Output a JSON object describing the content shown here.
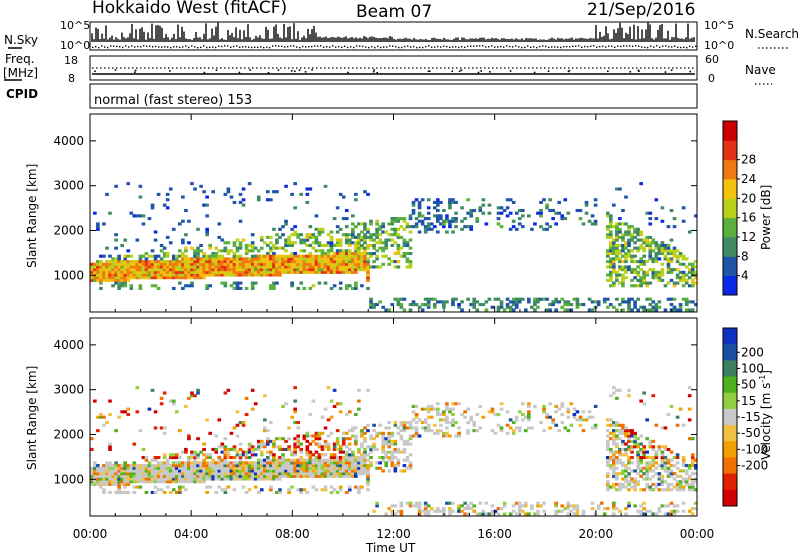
{
  "header": {
    "radar": "Hokkaido West (fitACF)",
    "beam": "Beam 07",
    "date": "21/Sep/2016"
  },
  "params": {
    "nsky_label": "N.Sky",
    "nsky_ticks": [
      "10^5",
      "10^0"
    ],
    "nsearch_label": "N.Search",
    "nsearch_ticks": [
      "10^5",
      "10^0"
    ],
    "freq_label_1": "Freq.",
    "freq_label_2": "[MHz]",
    "freq_ticks": [
      "18",
      "8"
    ],
    "nave_label": "Nave",
    "nave_ticks": [
      "60",
      "0"
    ],
    "cpid_label": "CPID",
    "cpid_value": "normal (fast stereo) 153"
  },
  "chart_data": [
    {
      "type": "heatmap",
      "name": "power",
      "ylabel": "Slant Range [km]",
      "yticks": [
        1000,
        2000,
        3000,
        4000
      ],
      "ylim": [
        180,
        4600
      ],
      "xlim_hours": [
        0,
        24
      ],
      "colorbar_label": "Power [dB]",
      "colorbar_ticks": [
        "4",
        "8",
        "12",
        "16",
        "20",
        "24",
        "28"
      ],
      "colorbar_colors": [
        "#0a28e6",
        "#1f55a8",
        "#3e8a62",
        "#5ab03c",
        "#b8d21c",
        "#f3c10e",
        "#f07a12",
        "#e23214",
        "#cc0000"
      ],
      "echo_regions": [
        {
          "t0": 0.0,
          "t1": 10.8,
          "r0": 800,
          "r1": 1300,
          "power": "strong"
        },
        {
          "t0": 2.0,
          "t1": 12.5,
          "r0": 1200,
          "r1": 2200,
          "power": "medium"
        },
        {
          "t0": 12.5,
          "t1": 20.0,
          "r0": 1900,
          "r1": 2800,
          "power": "weak"
        },
        {
          "t0": 20.5,
          "t1": 24.0,
          "r0": 800,
          "r1": 2500,
          "power": "medium"
        }
      ]
    },
    {
      "type": "heatmap",
      "name": "velocity",
      "ylabel": "Slant Range [km]",
      "yticks": [
        1000,
        2000,
        3000,
        4000
      ],
      "ylim": [
        180,
        4600
      ],
      "xlim_hours": [
        0,
        24
      ],
      "colorbar_label_main": "Velocity [m s",
      "colorbar_label_sup": "-1",
      "colorbar_label_end": "]",
      "colorbar_ticks": [
        "200",
        "100",
        "50",
        "15",
        "-15",
        "-50",
        "-100",
        "-200"
      ],
      "colorbar_colors": [
        "#1030c0",
        "#1a50a0",
        "#3c8060",
        "#50b020",
        "#90d040",
        "#c8c8c8",
        "#f0c040",
        "#f0a000",
        "#f07000",
        "#e02000",
        "#d00000"
      ]
    }
  ],
  "xaxis": {
    "label": "Time UT",
    "ticks": [
      "00:00",
      "04:00",
      "08:00",
      "12:00",
      "16:00",
      "20:00",
      "00:00"
    ]
  }
}
